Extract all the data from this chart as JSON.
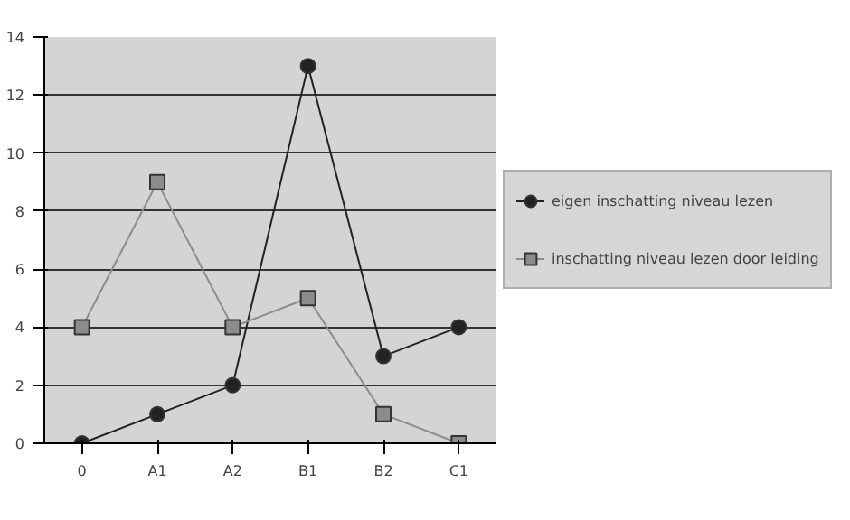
{
  "chart_data": {
    "type": "line",
    "categories": [
      "0",
      "A1",
      "A2",
      "B1",
      "B2",
      "C1"
    ],
    "ylim": [
      0,
      14
    ],
    "yticks": [
      0,
      2,
      4,
      6,
      8,
      10,
      12,
      14
    ],
    "grid": "y",
    "legend": "right",
    "series": [
      {
        "name": "eigen inschatting niveau lezen",
        "color": "#222222",
        "marker": "circle",
        "values": [
          0,
          1,
          2,
          13,
          3,
          4
        ]
      },
      {
        "name": "inschatting niveau lezen door leiding",
        "color": "#8c8c8c",
        "marker": "square",
        "values": [
          4,
          9,
          4,
          5,
          1,
          0
        ]
      }
    ]
  }
}
